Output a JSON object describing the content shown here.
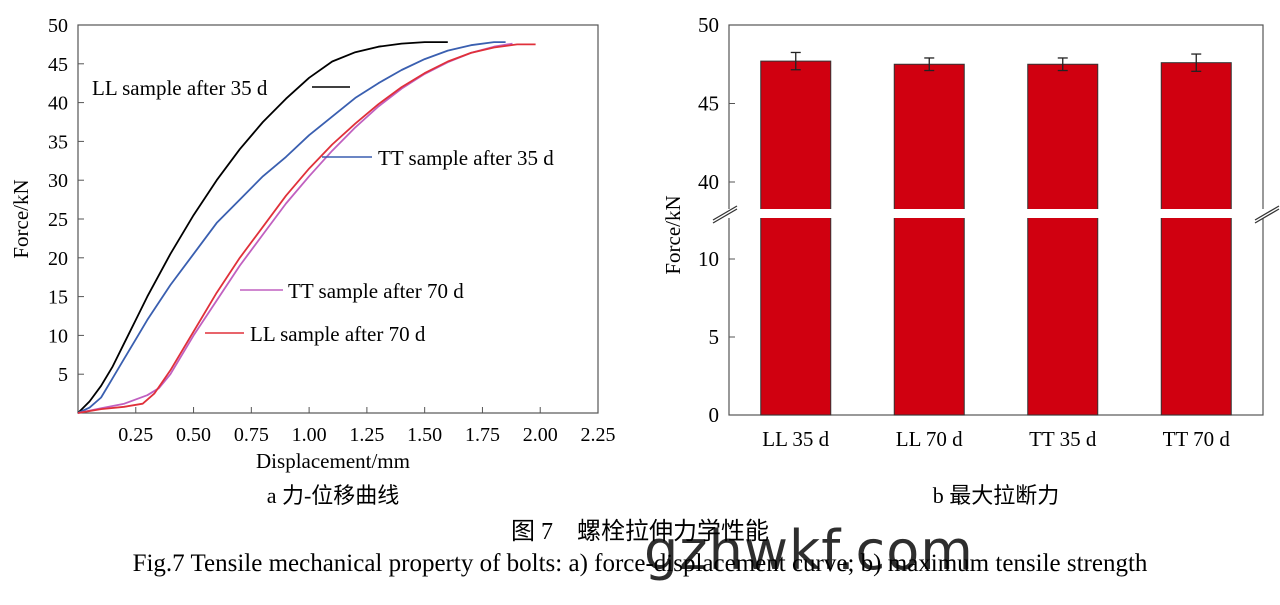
{
  "figure": {
    "caption_cn": "图 7　螺栓拉伸力学性能",
    "caption_en": "Fig.7 Tensile mechanical property of bolts: a) force-displacement curve; b) maximum tensile strength",
    "watermark": "gzhwkf.com"
  },
  "chart_data": [
    {
      "type": "line",
      "subcaption": "a 力-位移曲线",
      "xlabel": "Displacement/mm",
      "ylabel": "Force/kN",
      "xlim": [
        0,
        2.25
      ],
      "ylim": [
        0,
        50
      ],
      "xticks": [
        "0.25",
        "0.50",
        "0.75",
        "1.00",
        "1.25",
        "1.50",
        "1.75",
        "2.00",
        "2.25"
      ],
      "yticks": [
        "5",
        "10",
        "15",
        "20",
        "25",
        "30",
        "35",
        "40",
        "45",
        "50"
      ],
      "grid": false,
      "series": [
        {
          "name": "LL sample after 35 d",
          "color": "#000000",
          "x": [
            0,
            0.05,
            0.1,
            0.15,
            0.2,
            0.25,
            0.3,
            0.4,
            0.5,
            0.6,
            0.7,
            0.8,
            0.9,
            1.0,
            1.1,
            1.2,
            1.3,
            1.4,
            1.5,
            1.55,
            1.6
          ],
          "y": [
            0,
            1.5,
            3.5,
            6,
            9,
            12,
            15,
            20.5,
            25.5,
            30,
            34,
            37.5,
            40.5,
            43.2,
            45.3,
            46.5,
            47.2,
            47.6,
            47.8,
            47.8,
            47.8
          ]
        },
        {
          "name": "TT sample after 35 d",
          "color": "#3a5fb0",
          "x": [
            0,
            0.05,
            0.1,
            0.15,
            0.2,
            0.25,
            0.3,
            0.4,
            0.5,
            0.6,
            0.7,
            0.8,
            0.9,
            1.0,
            1.1,
            1.2,
            1.3,
            1.4,
            1.5,
            1.6,
            1.7,
            1.8,
            1.85
          ],
          "y": [
            0,
            0.7,
            2,
            4.5,
            7,
            9.5,
            12,
            16.5,
            20.5,
            24.5,
            27.5,
            30.5,
            33,
            35.8,
            38.2,
            40.6,
            42.5,
            44.2,
            45.6,
            46.7,
            47.4,
            47.8,
            47.8
          ]
        },
        {
          "name": "TT sample after 70 d",
          "color": "#c060c0",
          "x": [
            0,
            0.1,
            0.2,
            0.3,
            0.35,
            0.4,
            0.5,
            0.6,
            0.7,
            0.8,
            0.9,
            1.0,
            1.1,
            1.2,
            1.3,
            1.4,
            1.5,
            1.6,
            1.7,
            1.8,
            1.88
          ],
          "y": [
            0,
            0.6,
            1.2,
            2.3,
            3.2,
            5,
            10,
            14.5,
            19,
            23,
            27,
            30.5,
            33.8,
            36.8,
            39.5,
            41.8,
            43.7,
            45.2,
            46.4,
            47.2,
            47.6
          ]
        },
        {
          "name": "LL sample after 70 d",
          "color": "#e0303a",
          "x": [
            0,
            0.1,
            0.2,
            0.28,
            0.33,
            0.4,
            0.5,
            0.6,
            0.7,
            0.8,
            0.9,
            1.0,
            1.1,
            1.2,
            1.3,
            1.4,
            1.5,
            1.6,
            1.7,
            1.8,
            1.9,
            1.98
          ],
          "y": [
            0,
            0.5,
            0.8,
            1.2,
            2.5,
            5.5,
            10.5,
            15.5,
            20,
            24,
            28,
            31.5,
            34.6,
            37.3,
            39.8,
            42,
            43.8,
            45.3,
            46.4,
            47.1,
            47.5,
            47.5
          ]
        }
      ]
    },
    {
      "type": "bar",
      "subcaption": "b 最大拉断力",
      "ylabel": "Force/kN",
      "categories": [
        "LL 35 d",
        "LL 70 d",
        "TT 35 d",
        "TT 70 d"
      ],
      "values": [
        47.7,
        47.5,
        47.5,
        47.6
      ],
      "errors": [
        0.55,
        0.4,
        0.4,
        0.55
      ],
      "bar_color": "#d00010",
      "axis_break": [
        12,
        38
      ],
      "ylim": [
        0,
        50
      ],
      "yticks_lower": [
        "0",
        "5",
        "10"
      ],
      "yticks_upper": [
        "40",
        "45",
        "50"
      ],
      "grid": false
    }
  ]
}
